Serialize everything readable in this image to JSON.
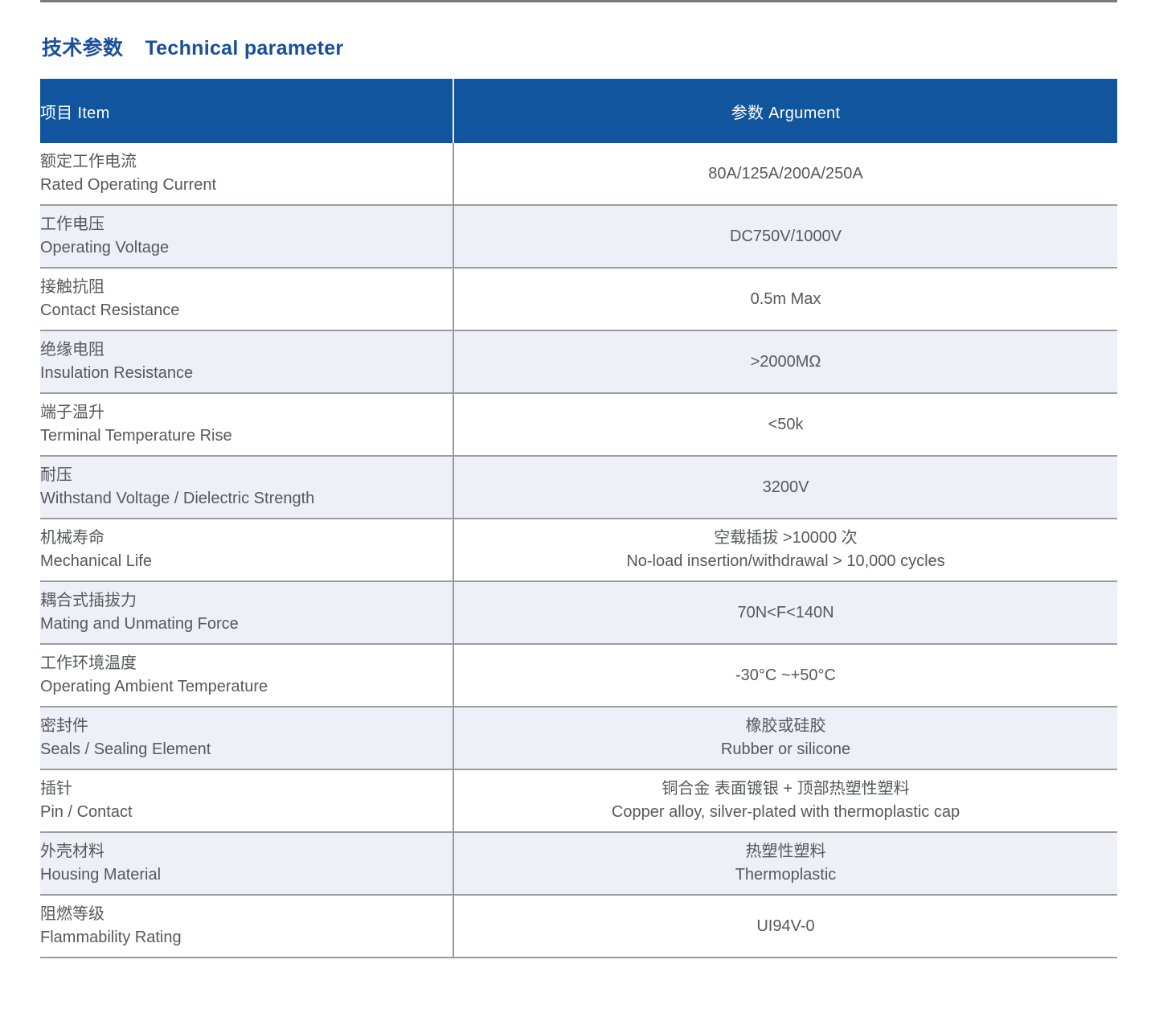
{
  "title": {
    "zh": "技术参数",
    "en": "Technical parameter"
  },
  "table": {
    "header_item": "项目 Item",
    "header_argument": "参数 Argument",
    "rows": [
      {
        "item_zh": "额定工作电流",
        "item_en": "Rated Operating Current",
        "value_lines": [
          "80A/125A/200A/250A"
        ]
      },
      {
        "item_zh": "工作电压",
        "item_en": "Operating Voltage",
        "value_lines": [
          "DC750V/1000V"
        ]
      },
      {
        "item_zh": "接触抗阻",
        "item_en": "Contact Resistance",
        "value_lines": [
          "0.5m Max"
        ]
      },
      {
        "item_zh": "绝缘电阻",
        "item_en": "Insulation Resistance",
        "value_lines": [
          ">2000MΩ"
        ]
      },
      {
        "item_zh": "端子温升",
        "item_en": "Terminal Temperature Rise",
        "value_lines": [
          "<50k"
        ]
      },
      {
        "item_zh": "耐压",
        "item_en": "Withstand Voltage / Dielectric Strength",
        "value_lines": [
          "3200V"
        ]
      },
      {
        "item_zh": "机械寿命",
        "item_en": "Mechanical Life",
        "value_lines": [
          "空载插拔 >10000 次",
          "No-load insertion/withdrawal > 10,000 cycles"
        ]
      },
      {
        "item_zh": "耦合式插拔力",
        "item_en": "Mating and Unmating Force",
        "value_lines": [
          "70N<F<140N"
        ]
      },
      {
        "item_zh": "工作环境温度",
        "item_en": "Operating Ambient Temperature",
        "value_lines": [
          "-30°C ~+50°C"
        ]
      },
      {
        "item_zh": "密封件",
        "item_en": "Seals / Sealing Element",
        "value_lines": [
          "橡胶或硅胶",
          "Rubber or silicone"
        ]
      },
      {
        "item_zh": "插针",
        "item_en": "Pin / Contact",
        "value_lines": [
          "铜合金 表面镀银 + 顶部热塑性塑料",
          "Copper alloy, silver-plated with thermoplastic cap"
        ]
      },
      {
        "item_zh": "外壳材料",
        "item_en": "Housing Material",
        "value_lines": [
          "热塑性塑料",
          "Thermoplastic"
        ]
      },
      {
        "item_zh": "阻燃等级",
        "item_en": "Flammability Rating",
        "value_lines": [
          "UI94V-0"
        ]
      }
    ]
  },
  "colors": {
    "header_background": "#10559E",
    "title_text": "#1A4F9C",
    "stripe_row": "#EDF0F7",
    "grid_line": "#9C9C9C",
    "body_text": "#57585B",
    "top_rule": "#7B7B7B"
  }
}
